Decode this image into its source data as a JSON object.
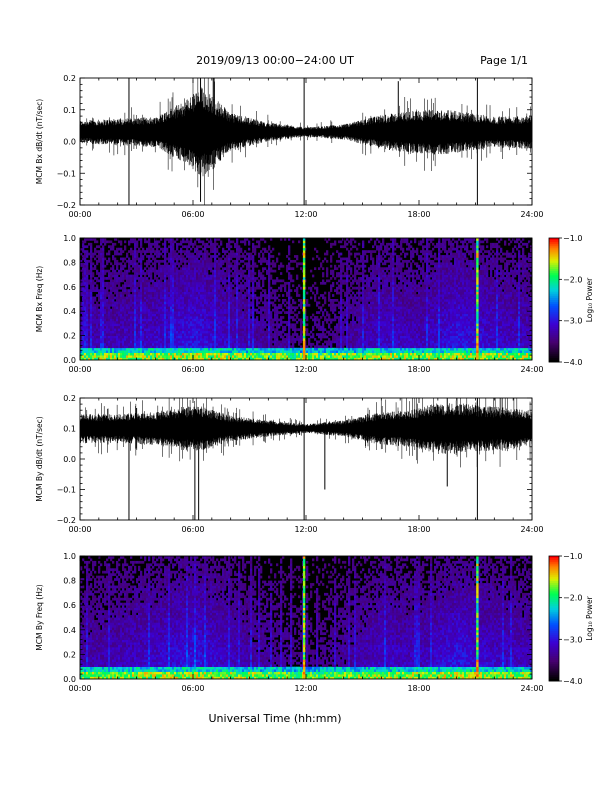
{
  "header": {
    "title": "2019/09/13  00:00−24:00 UT",
    "page": "Page 1/1"
  },
  "footer": {
    "xlabel": "Universal Time (hh:mm)"
  },
  "chart_data": [
    {
      "type": "line",
      "id": "bx-dbdt",
      "ylabel": "MCM Bx dB/dt (nT/sec)",
      "xlim": [
        0,
        24
      ],
      "ylim": [
        -0.2,
        0.2
      ],
      "x_ticks": [
        "00:00",
        "06:00",
        "12:00",
        "18:00",
        "24:00"
      ],
      "y_ticks": [
        "−0.2",
        "−0.1",
        "0.0",
        "0.1",
        "0.2"
      ],
      "y_tick_values": [
        -0.2,
        -0.1,
        0.0,
        0.1,
        0.2
      ],
      "baseline": 0.03,
      "envelope": {
        "hours": [
          0,
          2,
          4,
          5.5,
          6.5,
          8,
          10,
          12,
          14,
          16,
          17.5,
          19,
          20,
          22,
          24
        ],
        "amplitude": [
          0.03,
          0.035,
          0.04,
          0.08,
          0.12,
          0.05,
          0.025,
          0.012,
          0.02,
          0.045,
          0.055,
          0.06,
          0.055,
          0.04,
          0.045
        ]
      },
      "spikes": [
        {
          "hour": 2.6,
          "min": -0.2,
          "max": 0.2
        },
        {
          "hour": 6.4,
          "min": -0.19,
          "max": 0.2
        },
        {
          "hour": 11.9,
          "min": -0.2,
          "max": 0.2
        },
        {
          "hour": 16.9,
          "min": -0.02,
          "max": 0.19
        },
        {
          "hour": 21.1,
          "min": -0.2,
          "max": 0.2
        }
      ]
    },
    {
      "type": "heatmap",
      "id": "bx-spectrogram",
      "ylabel": "MCM Bx Freq (Hz)",
      "xlim": [
        0,
        24
      ],
      "ylim": [
        0,
        1.0
      ],
      "x_ticks": [
        "00:00",
        "06:00",
        "12:00",
        "18:00",
        "24:00"
      ],
      "y_ticks": [
        "0.0",
        "0.2",
        "0.4",
        "0.6",
        "0.8",
        "1.0"
      ],
      "y_tick_values": [
        0,
        0.2,
        0.4,
        0.6,
        0.8,
        1.0
      ],
      "colorbar": {
        "label": "Log₁₀ Power",
        "range": [
          -4.0,
          -1.0
        ],
        "ticks": [
          "−1.0",
          "−2.0",
          "−3.0",
          "−4.0"
        ],
        "tick_values": [
          -1,
          -2,
          -3,
          -4
        ]
      },
      "bright_lines_hours": [
        11.9,
        21.1
      ]
    },
    {
      "type": "line",
      "id": "by-dbdt",
      "ylabel": "MCM By dB/dt (nT/sec)",
      "xlim": [
        0,
        24
      ],
      "ylim": [
        -0.2,
        0.2
      ],
      "x_ticks": [
        "00:00",
        "06:00",
        "12:00",
        "18:00",
        "24:00"
      ],
      "y_ticks": [
        "−0.2",
        "−0.1",
        "0.0",
        "0.1",
        "0.2"
      ],
      "y_tick_values": [
        -0.2,
        -0.1,
        0.0,
        0.1,
        0.2
      ],
      "baseline": 0.1,
      "envelope": {
        "hours": [
          0,
          2,
          4,
          5.5,
          6.5,
          8,
          10,
          12,
          14,
          16,
          17.5,
          19,
          20,
          22,
          24
        ],
        "amplitude": [
          0.04,
          0.04,
          0.045,
          0.06,
          0.06,
          0.035,
          0.022,
          0.012,
          0.022,
          0.045,
          0.05,
          0.07,
          0.07,
          0.06,
          0.05
        ]
      },
      "spikes": [
        {
          "hour": 2.6,
          "min": -0.2,
          "max": 0.1
        },
        {
          "hour": 6.1,
          "min": -0.2,
          "max": 0.1
        },
        {
          "hour": 6.3,
          "min": -0.2,
          "max": 0.1
        },
        {
          "hour": 11.9,
          "min": -0.2,
          "max": 0.2
        },
        {
          "hour": 13.0,
          "min": -0.1,
          "max": 0.1
        },
        {
          "hour": 19.5,
          "min": -0.09,
          "max": 0.2
        },
        {
          "hour": 21.1,
          "min": -0.2,
          "max": 0.2
        }
      ]
    },
    {
      "type": "heatmap",
      "id": "by-spectrogram",
      "ylabel": "MCM By Freq (Hz)",
      "xlim": [
        0,
        24
      ],
      "ylim": [
        0,
        1.0
      ],
      "x_ticks": [
        "00:00",
        "06:00",
        "12:00",
        "18:00",
        "24:00"
      ],
      "y_ticks": [
        "0.0",
        "0.2",
        "0.4",
        "0.6",
        "0.8",
        "1.0"
      ],
      "y_tick_values": [
        0,
        0.2,
        0.4,
        0.6,
        0.8,
        1.0
      ],
      "colorbar": {
        "label": "Log₁₀ Power",
        "range": [
          -4.0,
          -1.0
        ],
        "ticks": [
          "−1.0",
          "−2.0",
          "−3.0",
          "−4.0"
        ],
        "tick_values": [
          -1,
          -2,
          -3,
          -4
        ]
      },
      "bright_lines_hours": [
        11.9,
        21.1
      ]
    }
  ]
}
